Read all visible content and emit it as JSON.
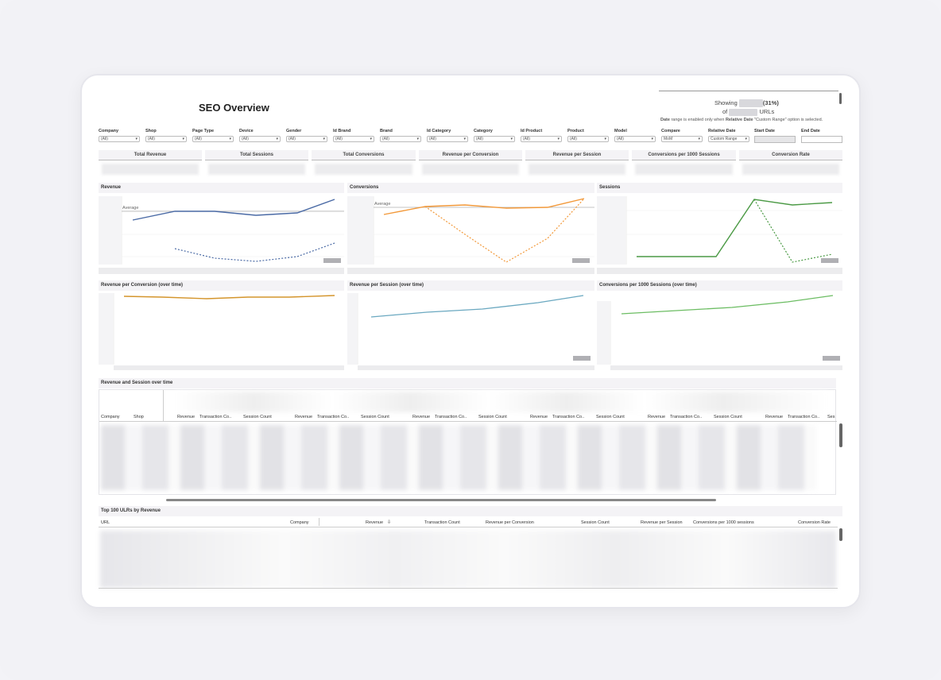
{
  "title": "SEO Overview",
  "showing": {
    "prefix": "Showing",
    "percent": "(31%)",
    "of": "of",
    "suffix": "URLs",
    "note_bold1": "Date",
    "note_mid": " range is enabled only when ",
    "note_bold2": "Relative Date",
    "note_end": " \"Custom Range\" option is selected."
  },
  "filters": [
    {
      "label": "Company",
      "value": "(All)"
    },
    {
      "label": "Shop",
      "value": "(All)"
    },
    {
      "label": "Page Type",
      "value": "(All)"
    },
    {
      "label": "Device",
      "value": "(All)"
    },
    {
      "label": "Gender",
      "value": "(All)"
    },
    {
      "label": "Id Brand",
      "value": "(All)"
    },
    {
      "label": "Brand",
      "value": "(All)"
    },
    {
      "label": "Id Category",
      "value": "(All)"
    },
    {
      "label": "Category",
      "value": "(All)"
    },
    {
      "label": "Id Product",
      "value": "(All)"
    },
    {
      "label": "Product",
      "value": "(All)"
    },
    {
      "label": "Model",
      "value": "(All)"
    },
    {
      "label": "Compare",
      "value": "MoM"
    },
    {
      "label": "Relative Date",
      "value": "Custom Range"
    }
  ],
  "date_filters": {
    "start": "Start Date",
    "end": "End Date"
  },
  "kpis": [
    "Total Revenue",
    "Total Sessions",
    "Total Conversions",
    "Revenue per Conversion",
    "Revenue per Session",
    "Conversions per 1000 Sessions",
    "Conversion Rate"
  ],
  "panels": {
    "revenue": "Revenue",
    "conversions": "Conversions",
    "sessions": "Sessions",
    "rev_per_conv": "Revenue per Conversion (over time)",
    "rev_per_session": "Revenue per Session (over time)",
    "conv_per_1000": "Conversions per 1000 Sessions (over time)",
    "average": "Average"
  },
  "table1": {
    "title": "Revenue and Session over time",
    "dims": [
      "Company",
      "Shop"
    ],
    "group_cols": [
      "Revenue",
      "Transaction Co..",
      "Session Count"
    ],
    "last_partial": "Ses"
  },
  "table2": {
    "title": "Top 100 ULRs by Revenue",
    "cols": [
      "URL",
      "Company",
      "Revenue",
      "Transaction Count",
      "Revenue per Conversion",
      "Session Count",
      "Revenue per Session",
      "Conversions per 1000 sessions",
      "Conversion Rate"
    ]
  },
  "colors": {
    "revenue": "#4a6aa5",
    "conversions": "#f2993a",
    "sessions": "#4b9a45",
    "rev_per_conv": "#d4952c",
    "rev_per_session": "#6aa8c0",
    "conv_per_1000": "#6cbd63"
  }
}
